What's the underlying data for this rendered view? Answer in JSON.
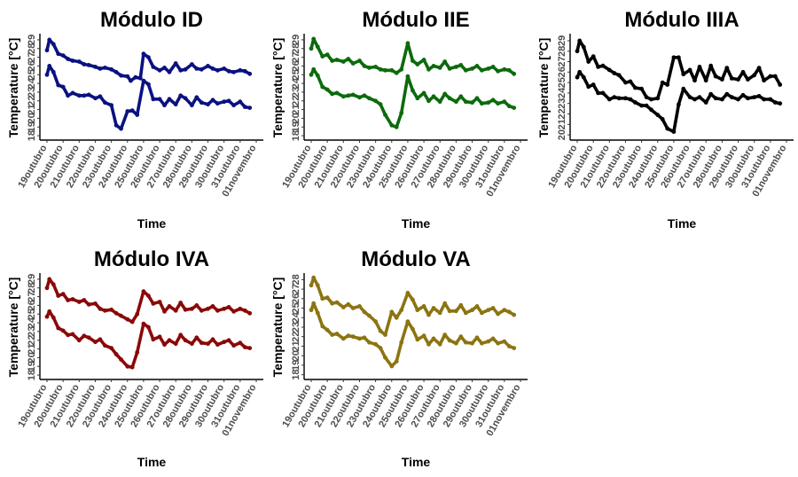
{
  "chart_data": [
    {
      "type": "scatter",
      "title": "Módulo ID",
      "xlabel": "Time",
      "ylabel": "Temperature [°C]",
      "color": "#0a1180",
      "x_tick_labels": [
        "19outubro",
        "20outubro",
        "21outubro",
        "22outubro",
        "23outubro",
        "24outubro",
        "25outubro",
        "26outubro",
        "27outubro",
        "28outubro",
        "29outubro",
        "30outubro",
        "31outubro",
        "01novembro"
      ],
      "y_tick_labels": [
        "18",
        "19",
        "20",
        "21",
        "22",
        "23",
        "24",
        "25",
        "26",
        "27",
        "28",
        "29"
      ],
      "xlim": [
        0,
        13
      ],
      "ylim": [
        17.5,
        29.5
      ],
      "series": [
        {
          "x": [
            0,
            0.15,
            0.4,
            0.7,
            1.0,
            1.3,
            1.6,
            2.0,
            2.3,
            2.6,
            3.0,
            3.3,
            3.6,
            4.0,
            4.3,
            4.6,
            5.0,
            5.2,
            5.5,
            5.8,
            6.0,
            6.3,
            6.6,
            7.0,
            7.3,
            7.6,
            8.0,
            8.3,
            8.6,
            9.0,
            9.3,
            9.6,
            10.0,
            10.3,
            10.6,
            11.0,
            11.3,
            11.6,
            12.0,
            12.3,
            12.6
          ],
          "y": [
            27.8,
            29.0,
            28.5,
            27.4,
            27.2,
            26.8,
            26.6,
            26.5,
            26.2,
            26.1,
            25.9,
            25.7,
            25.8,
            25.6,
            25.3,
            24.9,
            24.8,
            24.3,
            24.7,
            24.6,
            27.4,
            27.0,
            25.9,
            25.5,
            25.8,
            25.3,
            26.3,
            25.5,
            25.6,
            26.2,
            25.7,
            25.6,
            26.0,
            25.7,
            25.5,
            25.7,
            25.4,
            25.3,
            25.5,
            25.4,
            25.1
          ]
        },
        {
          "x": [
            0,
            0.15,
            0.4,
            0.7,
            1.0,
            1.3,
            1.6,
            2.0,
            2.3,
            2.6,
            3.0,
            3.3,
            3.6,
            4.0,
            4.3,
            4.6,
            5.0,
            5.3,
            5.6,
            6.0,
            6.3,
            6.6,
            7.0,
            7.3,
            7.6,
            8.0,
            8.3,
            8.6,
            9.0,
            9.3,
            9.6,
            10.0,
            10.3,
            10.6,
            11.0,
            11.3,
            11.6,
            12.0,
            12.3,
            12.6
          ],
          "y": [
            25.0,
            26.0,
            25.3,
            23.8,
            23.6,
            22.6,
            22.9,
            22.6,
            22.6,
            22.7,
            22.3,
            22.5,
            21.8,
            21.5,
            19.2,
            18.8,
            20.8,
            20.9,
            20.4,
            24.3,
            23.9,
            22.2,
            22.2,
            21.5,
            22.2,
            21.6,
            22.6,
            22.3,
            21.5,
            22.4,
            21.8,
            21.6,
            22.1,
            21.7,
            21.9,
            22.0,
            21.5,
            21.9,
            21.3,
            21.2
          ]
        }
      ]
    },
    {
      "type": "scatter",
      "title": "Módulo IIE",
      "xlabel": "Time",
      "ylabel": "Temperature [°C]",
      "color": "#0c6a0c",
      "x_tick_labels": [
        "19outubro",
        "20outubro",
        "21outubro",
        "22outubro",
        "23outubro",
        "24outubro",
        "25outubro",
        "26outubro",
        "27outubro",
        "28outubro",
        "29outubro",
        "30outubro",
        "31outubro",
        "01novembro"
      ],
      "y_tick_labels": [
        "18",
        "19",
        "20",
        "21",
        "22",
        "23",
        "24",
        "25",
        "26",
        "27",
        "28",
        "29"
      ],
      "xlim": [
        0,
        13
      ],
      "ylim": [
        17.5,
        29.5
      ],
      "series": [
        {
          "x": [
            0,
            0.15,
            0.4,
            0.7,
            1.0,
            1.3,
            1.6,
            2.0,
            2.3,
            2.6,
            3.0,
            3.3,
            3.6,
            4.0,
            4.3,
            4.6,
            5.0,
            5.3,
            5.6,
            6.0,
            6.3,
            6.6,
            7.0,
            7.3,
            7.6,
            8.0,
            8.3,
            8.6,
            9.0,
            9.3,
            9.6,
            10.0,
            10.3,
            10.6,
            11.0,
            11.3,
            11.6,
            12.0,
            12.3,
            12.6
          ],
          "y": [
            28.0,
            29.1,
            28.2,
            27.1,
            27.3,
            26.6,
            26.7,
            26.5,
            26.8,
            26.3,
            26.6,
            26.0,
            25.8,
            25.9,
            25.6,
            25.5,
            25.5,
            25.2,
            25.6,
            28.6,
            26.6,
            26.2,
            26.7,
            25.6,
            26.0,
            25.8,
            26.5,
            25.7,
            25.9,
            26.1,
            25.5,
            25.7,
            26.0,
            25.5,
            25.7,
            25.9,
            25.4,
            25.6,
            25.5,
            25.1
          ]
        },
        {
          "x": [
            0,
            0.15,
            0.4,
            0.7,
            1.0,
            1.3,
            1.6,
            2.0,
            2.3,
            2.6,
            3.0,
            3.3,
            3.6,
            4.0,
            4.3,
            4.6,
            5.0,
            5.3,
            5.6,
            6.0,
            6.3,
            6.6,
            7.0,
            7.3,
            7.6,
            8.0,
            8.3,
            8.6,
            9.0,
            9.3,
            9.6,
            10.0,
            10.3,
            10.6,
            11.0,
            11.3,
            11.6,
            12.0,
            12.3,
            12.6
          ],
          "y": [
            25.0,
            25.6,
            24.9,
            23.6,
            23.3,
            22.8,
            22.9,
            22.5,
            22.6,
            22.7,
            22.4,
            22.6,
            22.3,
            22.0,
            21.6,
            20.4,
            19.2,
            19.0,
            20.6,
            24.8,
            23.2,
            22.3,
            22.9,
            22.0,
            22.5,
            21.9,
            22.8,
            22.3,
            21.9,
            22.5,
            21.9,
            21.8,
            22.3,
            21.7,
            21.8,
            22.1,
            21.7,
            21.9,
            21.4,
            21.2
          ]
        }
      ]
    },
    {
      "type": "scatter",
      "title": "Módulo IIIA",
      "xlabel": "Time",
      "ylabel": "Temperature [°C]",
      "color": "#000000",
      "x_tick_labels": [
        "19outubro",
        "20outubro",
        "21outubro",
        "22outubro",
        "23outubro",
        "24outubro",
        "25outubro",
        "26outubro",
        "27outubro",
        "28outubro",
        "29outubro",
        "30outubro",
        "31outubro",
        "01novembro"
      ],
      "y_tick_labels": [
        "20",
        "21",
        "22",
        "23",
        "24",
        "25",
        "26",
        "27",
        "28",
        "29"
      ],
      "xlim": [
        0,
        13
      ],
      "ylim": [
        19.5,
        29.5
      ],
      "series": [
        {
          "x": [
            0,
            0.15,
            0.4,
            0.7,
            1.0,
            1.3,
            1.6,
            2.0,
            2.3,
            2.6,
            3.0,
            3.3,
            3.6,
            4.0,
            4.3,
            4.6,
            5.0,
            5.3,
            5.6,
            6.0,
            6.3,
            6.6,
            7.0,
            7.3,
            7.6,
            8.0,
            8.3,
            8.6,
            9.0,
            9.3,
            9.6,
            10.0,
            10.3,
            10.6,
            11.0,
            11.3,
            11.6,
            12.0,
            12.3,
            12.6
          ],
          "y": [
            28.0,
            29.0,
            28.4,
            27.0,
            27.5,
            26.5,
            26.6,
            26.2,
            25.9,
            25.7,
            25.0,
            25.1,
            24.5,
            24.4,
            23.6,
            23.4,
            23.5,
            25.0,
            24.8,
            27.4,
            27.4,
            25.8,
            26.2,
            25.2,
            26.5,
            25.2,
            26.6,
            25.6,
            25.3,
            26.4,
            25.4,
            25.3,
            26.0,
            25.3,
            25.7,
            26.4,
            25.2,
            25.6,
            25.6,
            24.8
          ]
        },
        {
          "x": [
            0,
            0.15,
            0.4,
            0.7,
            1.0,
            1.3,
            1.6,
            2.0,
            2.3,
            2.6,
            3.0,
            3.3,
            3.6,
            4.0,
            4.3,
            4.6,
            5.0,
            5.3,
            5.6,
            6.0,
            6.3,
            6.6,
            7.0,
            7.3,
            7.6,
            8.0,
            8.3,
            8.6,
            9.0,
            9.3,
            9.6,
            10.0,
            10.3,
            10.6,
            11.0,
            11.3,
            11.6,
            12.0,
            12.3,
            12.6
          ],
          "y": [
            25.5,
            26.0,
            25.5,
            24.6,
            24.8,
            24.0,
            24.0,
            23.4,
            23.6,
            23.5,
            23.5,
            23.4,
            23.1,
            22.8,
            22.8,
            22.4,
            21.9,
            21.5,
            20.6,
            20.3,
            22.9,
            24.4,
            23.6,
            23.4,
            23.6,
            23.1,
            23.9,
            23.5,
            23.4,
            23.9,
            23.6,
            23.4,
            23.8,
            23.5,
            23.6,
            23.7,
            23.4,
            23.4,
            23.1,
            23.0
          ]
        }
      ]
    },
    {
      "type": "scatter",
      "title": "Módulo IVA",
      "xlabel": "Time",
      "ylabel": "Temperature [°C]",
      "color": "#8b0808",
      "x_tick_labels": [
        "19outubro",
        "20outubro",
        "21outubro",
        "22outubro",
        "23outubro",
        "24outubro",
        "25outubro",
        "26outubro",
        "27outubro",
        "28outubro",
        "29outubro",
        "30outubro",
        "31outubro",
        "01novembro"
      ],
      "y_tick_labels": [
        "18",
        "19",
        "20",
        "21",
        "22",
        "23",
        "24",
        "25",
        "26",
        "27",
        "28",
        "29"
      ],
      "xlim": [
        0,
        13
      ],
      "ylim": [
        17.5,
        29.5
      ],
      "series": [
        {
          "x": [
            0,
            0.15,
            0.4,
            0.7,
            1.0,
            1.3,
            1.6,
            2.0,
            2.3,
            2.6,
            3.0,
            3.3,
            3.6,
            4.0,
            4.3,
            4.6,
            5.0,
            5.3,
            5.6,
            6.0,
            6.3,
            6.6,
            7.0,
            7.3,
            7.6,
            8.0,
            8.3,
            8.6,
            9.0,
            9.3,
            9.6,
            10.0,
            10.3,
            10.6,
            11.0,
            11.3,
            11.6,
            12.0,
            12.3,
            12.6
          ],
          "y": [
            28.0,
            29.0,
            28.4,
            27.1,
            27.3,
            26.6,
            26.7,
            26.4,
            26.6,
            26.1,
            26.2,
            25.6,
            25.4,
            25.5,
            25.1,
            24.8,
            24.4,
            24.1,
            25.0,
            27.6,
            27.1,
            26.2,
            26.4,
            25.3,
            25.9,
            25.4,
            26.3,
            25.5,
            25.6,
            26.0,
            25.4,
            25.6,
            25.9,
            25.4,
            25.6,
            25.8,
            25.3,
            25.6,
            25.4,
            25.1
          ]
        },
        {
          "x": [
            0,
            0.15,
            0.4,
            0.7,
            1.0,
            1.3,
            1.6,
            2.0,
            2.3,
            2.6,
            3.0,
            3.3,
            3.6,
            4.0,
            4.3,
            4.6,
            5.0,
            5.3,
            5.6,
            6.0,
            6.3,
            6.6,
            7.0,
            7.3,
            7.6,
            8.0,
            8.3,
            8.6,
            9.0,
            9.3,
            9.6,
            10.0,
            10.3,
            10.6,
            11.0,
            11.3,
            11.6,
            12.0,
            12.3,
            12.6
          ],
          "y": [
            24.7,
            25.3,
            24.6,
            23.4,
            23.1,
            22.6,
            22.7,
            22.0,
            22.5,
            22.3,
            21.8,
            22.1,
            21.4,
            21.1,
            20.4,
            19.8,
            19.0,
            18.9,
            20.6,
            23.9,
            23.5,
            22.1,
            22.4,
            21.5,
            22.0,
            21.6,
            22.6,
            22.0,
            21.6,
            22.3,
            21.7,
            21.6,
            22.1,
            21.5,
            21.8,
            22.0,
            21.4,
            21.7,
            21.2,
            21.1
          ]
        }
      ]
    },
    {
      "type": "scatter",
      "title": "Módulo VA",
      "xlabel": "Time",
      "ylabel": "Temperature [°C]",
      "color": "#8c7410",
      "x_tick_labels": [
        "19outubro",
        "20outubro",
        "21outubro",
        "22outubro",
        "23outubro",
        "24outubro",
        "25outubro",
        "26outubro",
        "27outubro",
        "28outubro",
        "29outubro",
        "30outubro",
        "31outubro",
        "01novembro"
      ],
      "y_tick_labels": [
        "18",
        "19",
        "20",
        "21",
        "22",
        "23",
        "24",
        "25",
        "26",
        "27",
        "28"
      ],
      "xlim": [
        0,
        13
      ],
      "ylim": [
        17.5,
        28.5
      ],
      "series": [
        {
          "x": [
            0,
            0.15,
            0.4,
            0.7,
            1.0,
            1.3,
            1.6,
            2.0,
            2.3,
            2.6,
            3.0,
            3.3,
            3.6,
            4.0,
            4.3,
            4.6,
            5.0,
            5.3,
            5.6,
            6.0,
            6.3,
            6.6,
            7.0,
            7.3,
            7.6,
            8.0,
            8.3,
            8.6,
            9.0,
            9.3,
            9.6,
            10.0,
            10.3,
            10.6,
            11.0,
            11.3,
            11.6,
            12.0,
            12.3,
            12.6
          ],
          "y": [
            27.4,
            28.2,
            27.4,
            26.0,
            26.1,
            25.5,
            25.6,
            25.1,
            25.4,
            25.0,
            25.2,
            24.6,
            24.2,
            23.6,
            22.6,
            22.2,
            24.6,
            24.0,
            24.8,
            26.6,
            25.9,
            24.8,
            25.2,
            24.3,
            25.0,
            24.5,
            25.5,
            24.7,
            24.7,
            25.3,
            24.5,
            24.8,
            25.2,
            24.5,
            24.8,
            25.0,
            24.4,
            24.8,
            24.6,
            24.3
          ]
        },
        {
          "x": [
            0,
            0.15,
            0.4,
            0.7,
            1.0,
            1.3,
            1.6,
            2.0,
            2.3,
            2.6,
            3.0,
            3.3,
            3.6,
            4.0,
            4.3,
            4.6,
            5.0,
            5.3,
            5.6,
            6.0,
            6.3,
            6.6,
            7.0,
            7.3,
            7.6,
            8.0,
            8.3,
            8.6,
            9.0,
            9.3,
            9.6,
            10.0,
            10.3,
            10.6,
            11.0,
            11.3,
            11.6,
            12.0,
            12.3,
            12.6
          ],
          "y": [
            24.8,
            25.5,
            24.5,
            23.1,
            22.7,
            22.2,
            22.3,
            21.8,
            22.1,
            22.0,
            21.8,
            21.9,
            21.4,
            21.2,
            20.8,
            19.8,
            18.9,
            19.4,
            21.4,
            23.6,
            22.8,
            21.7,
            22.1,
            21.2,
            21.8,
            21.2,
            22.2,
            21.6,
            21.3,
            22.0,
            21.4,
            21.3,
            21.9,
            21.3,
            21.5,
            21.8,
            21.3,
            21.5,
            21.0,
            20.8
          ]
        }
      ]
    }
  ]
}
